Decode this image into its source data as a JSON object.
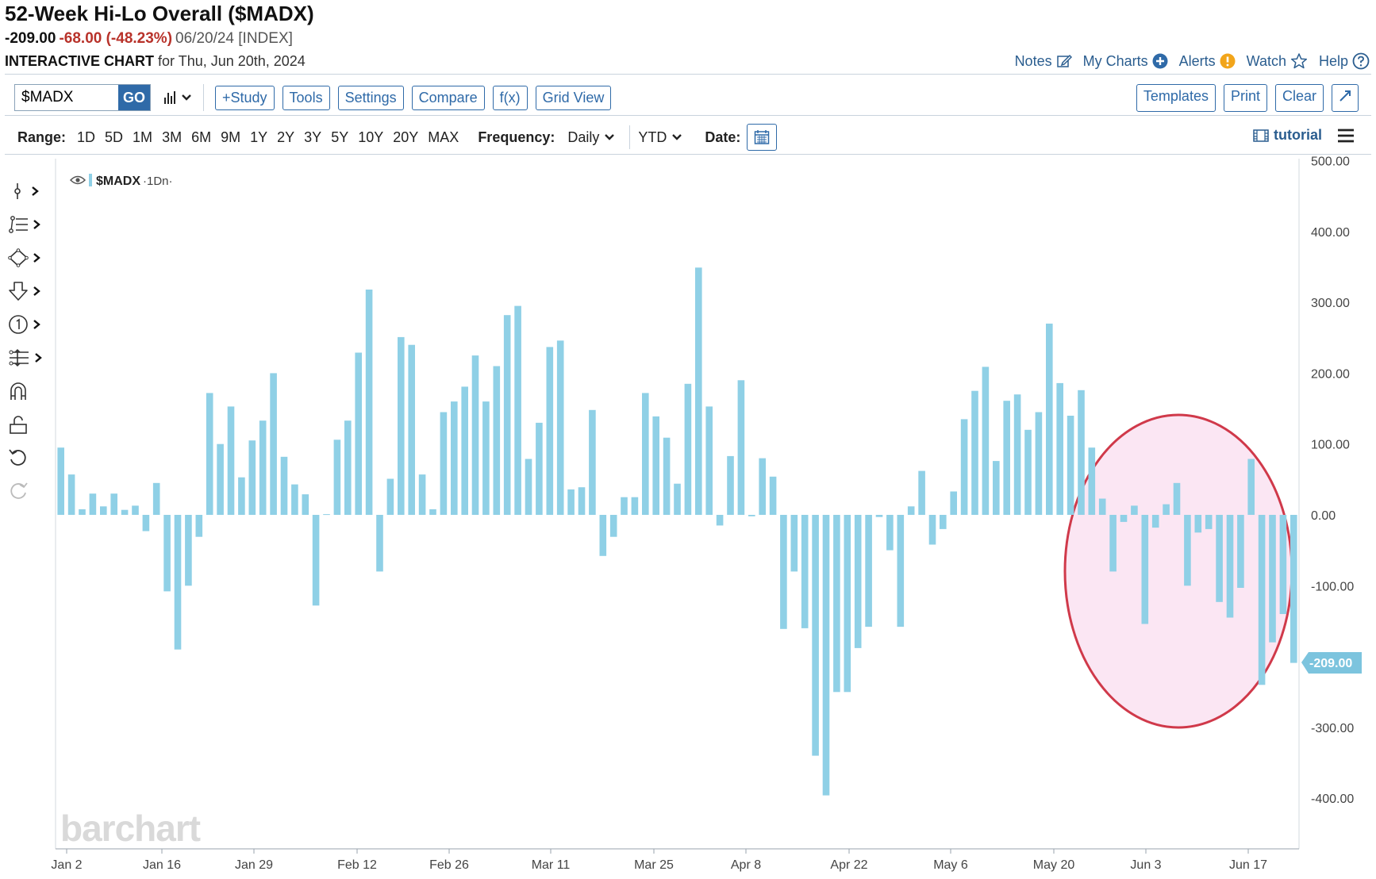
{
  "header": {
    "title": "52-Week Hi-Lo Overall ($MADX)",
    "last": "-209.00",
    "change": "-68.00 (-48.23%)",
    "meta": "06/20/24 [INDEX]",
    "interactive_label": "INTERACTIVE CHART",
    "for_date": "for Thu, Jun 20th, 2024"
  },
  "toplinks": {
    "notes": "Notes",
    "mycharts": "My Charts",
    "alerts": "Alerts",
    "watch": "Watch",
    "help": "Help"
  },
  "toolbar": {
    "symbol": "$MADX",
    "go": "GO",
    "study": "+Study",
    "tools": "Tools",
    "settings": "Settings",
    "compare": "Compare",
    "fx": "f(x)",
    "gridview": "Grid View",
    "templates": "Templates",
    "print": "Print",
    "clear": "Clear"
  },
  "rangebar": {
    "range_label": "Range:",
    "ranges": [
      "1D",
      "5D",
      "1M",
      "3M",
      "6M",
      "9M",
      "1Y",
      "2Y",
      "3Y",
      "5Y",
      "10Y",
      "20Y",
      "MAX"
    ],
    "frequency_label": "Frequency:",
    "frequency": "Daily",
    "period": "YTD",
    "date_label": "Date:",
    "tutorial": "tutorial"
  },
  "colors": {
    "bar": "#8fd0e6",
    "accent": "#2f6aa8",
    "negative": "#b8322a",
    "highlight_stroke": "#d0394a",
    "highlight_fill": "#fbe6f3"
  },
  "chart_data": {
    "type": "bar",
    "legend": "$MADX",
    "legend_suffix": "·1Dn·",
    "watermark": "barchart",
    "ylim": [
      -450,
      500
    ],
    "y_ticks": [
      "500.00",
      "400.00",
      "300.00",
      "200.00",
      "100.00",
      "0.00",
      "-100.00",
      "-200.00",
      "-300.00",
      "-400.00"
    ],
    "x_ticks": [
      "Jan 2",
      "Jan 16",
      "Jan 29",
      "Feb 12",
      "Feb 26",
      "Mar 11",
      "Mar 25",
      "Apr 8",
      "Apr 22",
      "May 6",
      "May 20",
      "Jun 3",
      "Jun 17"
    ],
    "last_value_label": "-209.00",
    "values": [
      95,
      57,
      8,
      30,
      12,
      30,
      7,
      13,
      -23,
      45,
      -108,
      -190,
      -100,
      -31,
      172,
      100,
      153,
      53,
      105,
      133,
      200,
      82,
      43,
      29,
      -128,
      1,
      106,
      133,
      229,
      318,
      -80,
      51,
      251,
      240,
      57,
      8,
      145,
      160,
      181,
      225,
      160,
      210,
      282,
      295,
      79,
      130,
      237,
      246,
      36,
      39,
      148,
      -58,
      -31,
      25,
      25,
      172,
      139,
      109,
      44,
      185,
      349,
      153,
      -15,
      83,
      190,
      -2,
      80,
      54,
      -161,
      -80,
      -160,
      -340,
      -396,
      -250,
      -250,
      -188,
      -158,
      -3,
      -50,
      -158,
      12,
      62,
      -42,
      -20,
      33,
      135,
      175,
      209,
      76,
      161,
      170,
      120,
      145,
      270,
      186,
      140,
      176,
      95,
      23,
      -80,
      -10,
      13,
      -154,
      -18,
      15,
      45,
      -100,
      -25,
      -20,
      -123,
      -145,
      -103,
      79,
      -240,
      -180,
      -140,
      -209
    ]
  }
}
